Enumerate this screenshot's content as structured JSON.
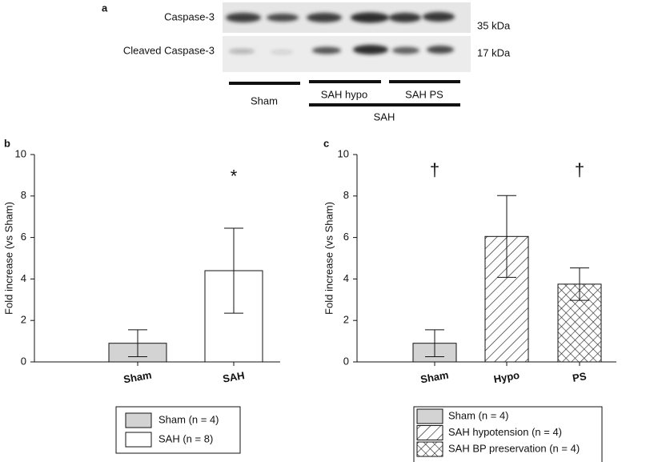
{
  "blot": {
    "panel_label": "a",
    "rows": [
      {
        "name": "Caspase-3",
        "size": "35 kDa"
      },
      {
        "name": "Cleaved Caspase-3",
        "size": "17 kDa"
      }
    ],
    "groups": [
      "Sham",
      "SAH hypo",
      "SAH PS"
    ],
    "group_all": "SAH"
  },
  "chart_data": [
    {
      "type": "bar",
      "panel_label": "b",
      "y_label": "Fold increase (vs Sham)",
      "categories": [
        "Sham",
        "SAH"
      ],
      "values": [
        0.9,
        4.4
      ],
      "errors": [
        0.65,
        2.05
      ],
      "colors": [
        "#d3d3d3",
        "#ffffff"
      ],
      "patterns": [
        "none",
        "none"
      ],
      "legend": [
        "Sham (n = 4)",
        "SAH (n = 8)"
      ],
      "annotations": [
        {
          "text": "*",
          "category": 1,
          "y": 8.9
        }
      ],
      "ylim": [
        0,
        10
      ],
      "yticks": [
        0,
        2,
        4,
        6,
        8,
        10
      ]
    },
    {
      "type": "bar",
      "panel_label": "c",
      "y_label": "Fold increase (vs Sham)",
      "categories": [
        "Sham",
        "Hypo",
        "PS"
      ],
      "values": [
        0.9,
        6.05,
        3.75
      ],
      "errors": [
        0.65,
        1.97,
        0.78
      ],
      "colors": [
        "#d3d3d3",
        "#ffffff",
        "#ffffff"
      ],
      "patterns": [
        "none",
        "hatch",
        "crosshatch"
      ],
      "legend": [
        "Sham (n = 4)",
        "SAH hypotension (n = 4)",
        "SAH BP preservation (n = 4)"
      ],
      "annotations": [
        {
          "text": "†",
          "category": 0,
          "y": 9.2
        },
        {
          "text": "†",
          "category": 2,
          "y": 9.2
        }
      ],
      "ylim": [
        0,
        10
      ],
      "yticks": [
        0,
        2,
        4,
        6,
        8,
        10
      ]
    }
  ]
}
